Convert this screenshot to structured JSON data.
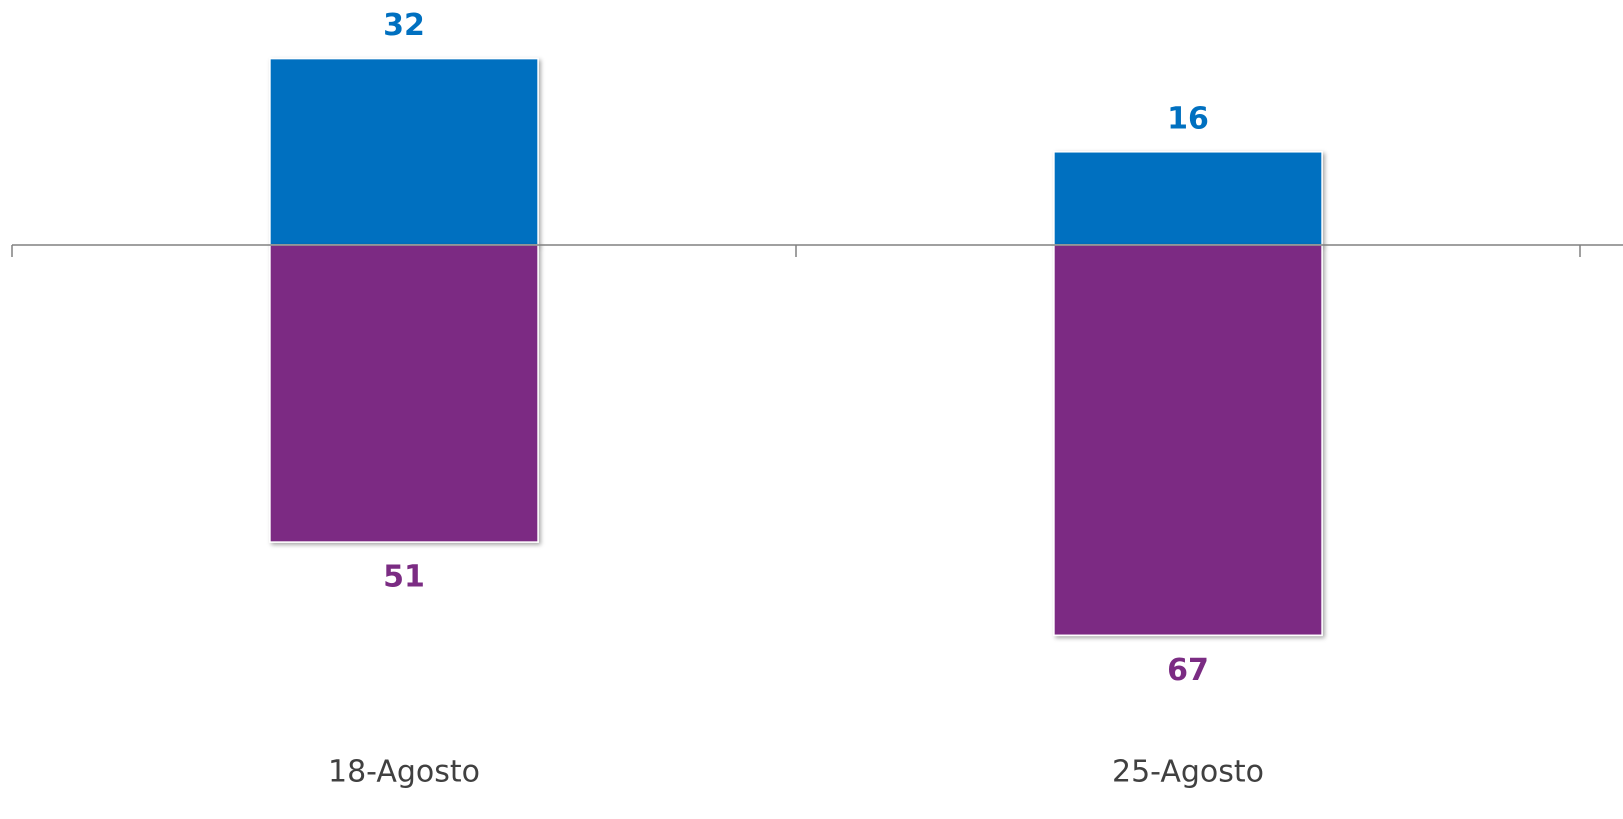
{
  "chart_data": {
    "type": "bar",
    "stacked": true,
    "categories": [
      "18-Agosto",
      "25-Agosto"
    ],
    "series": [
      {
        "name": null,
        "color": "#0070c0",
        "values": [
          32,
          16
        ]
      },
      {
        "name": null,
        "color": "#7b2c83",
        "values": [
          -51,
          -67
        ],
        "value_labels": [
          "51",
          "67"
        ]
      }
    ],
    "ylim": [
      -80,
      40
    ],
    "legend": false,
    "grid": false
  }
}
